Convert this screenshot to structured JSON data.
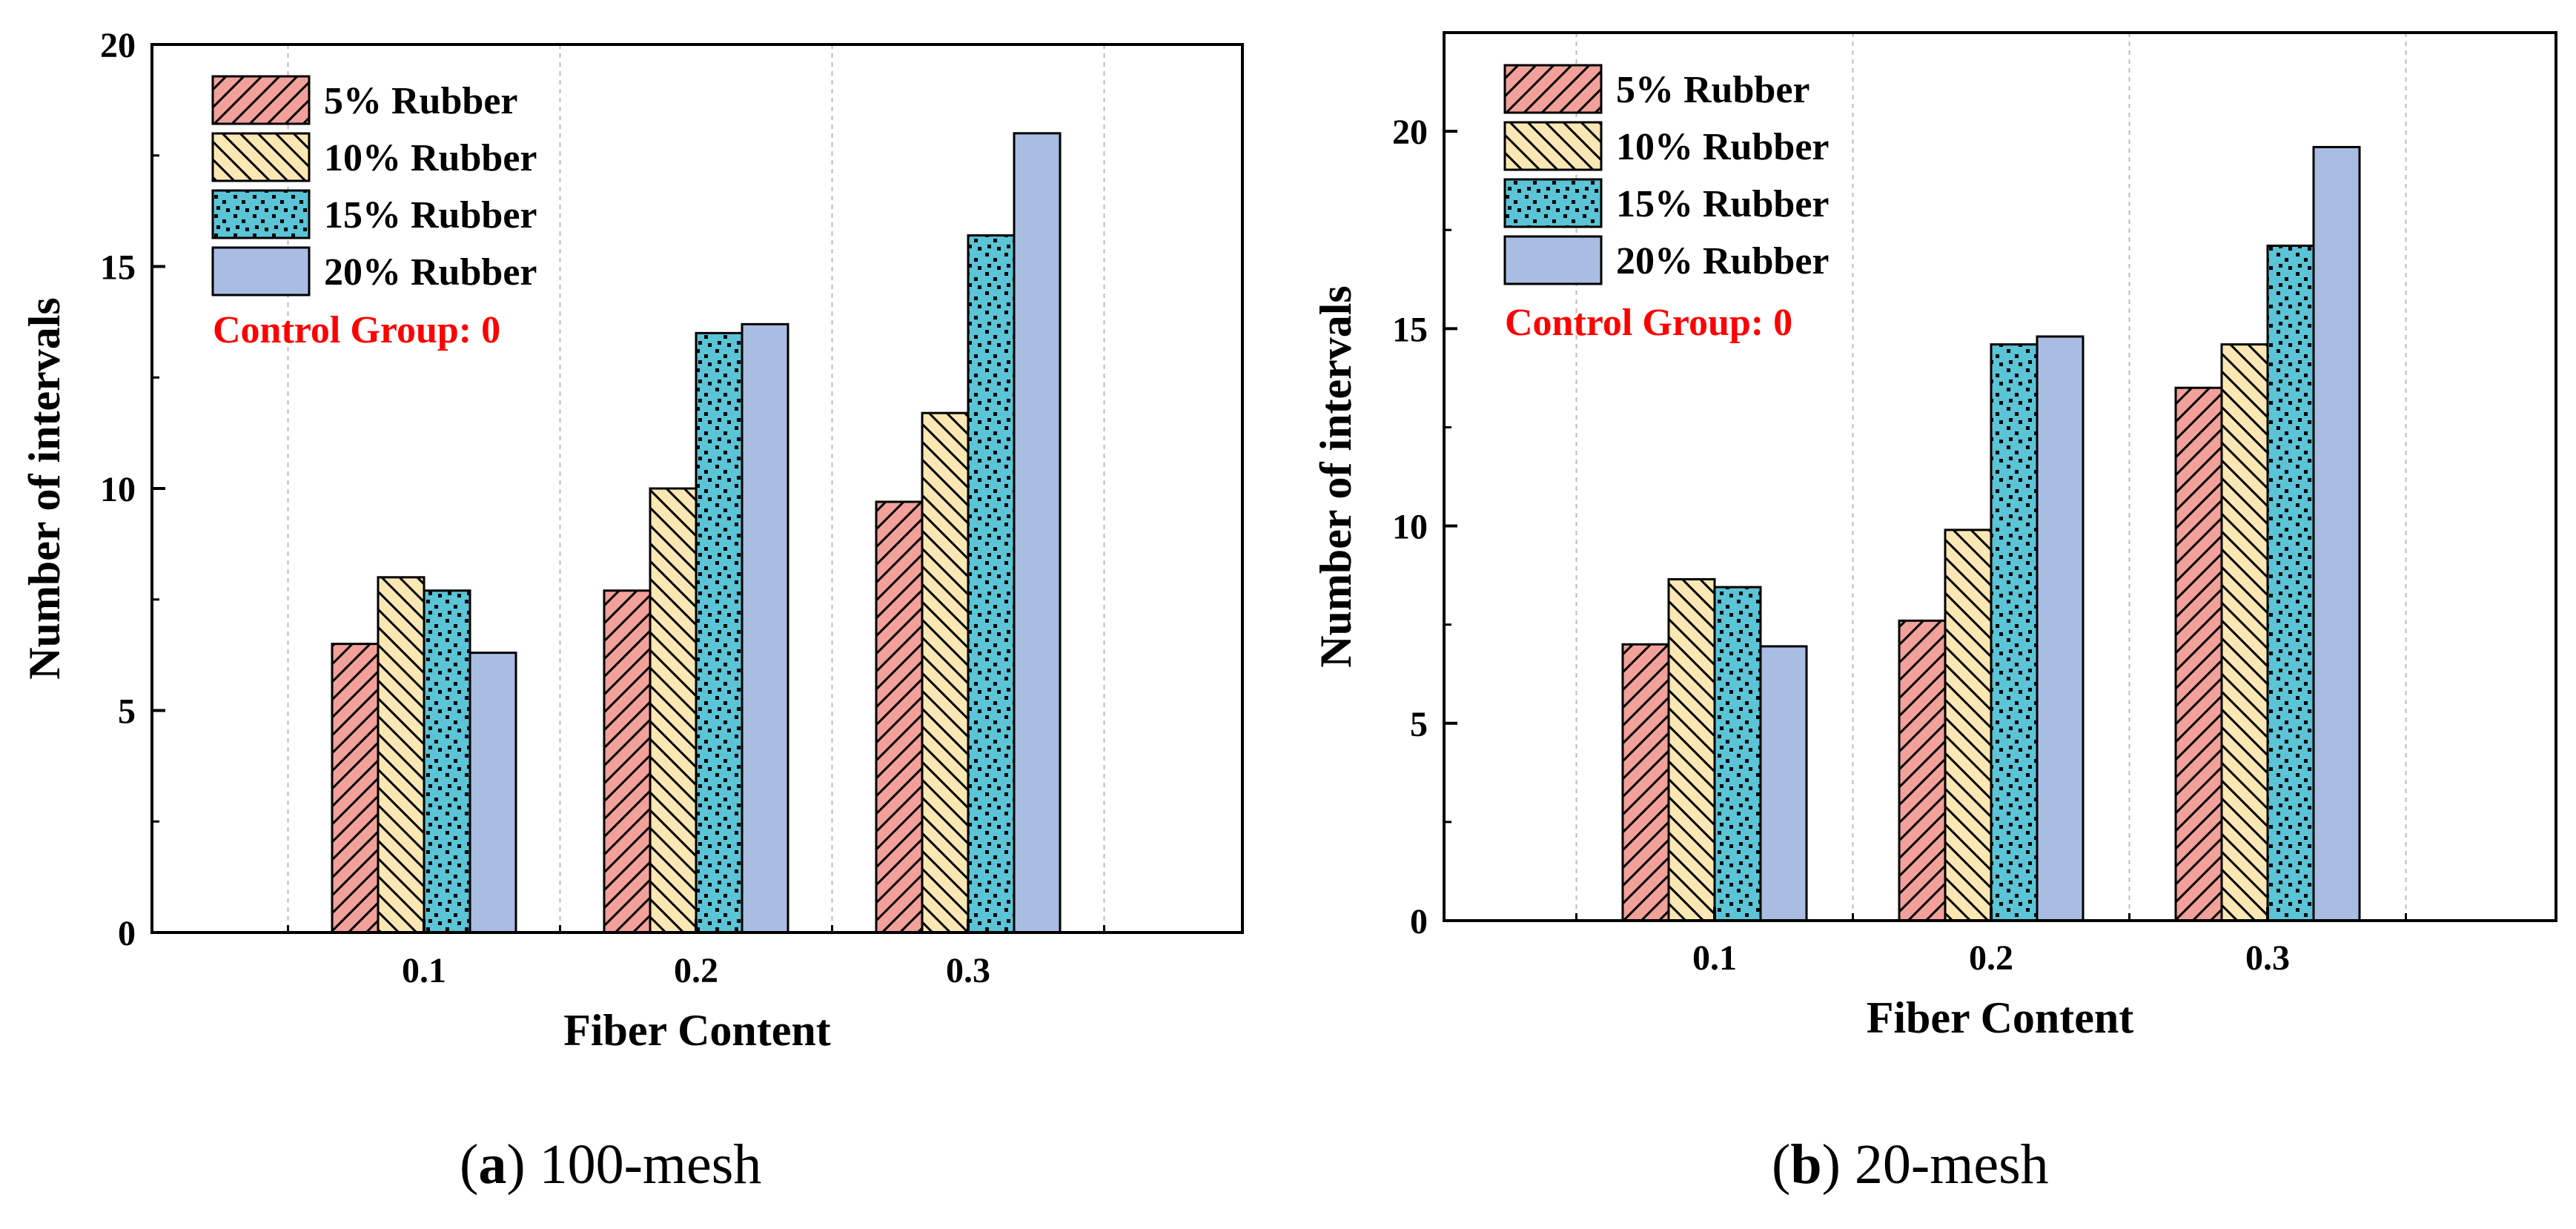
{
  "figure": {
    "legend_labels": [
      "5% Rubber",
      "10% Rubber",
      "15% Rubber",
      "20% Rubber"
    ],
    "note": "Control Group: 0",
    "colors": {
      "s5": "#f2a09a",
      "s10": "#fbe7b3",
      "s15": "#5bc4d6",
      "s20": "#a9bde3",
      "note": "#ff0000",
      "axis": "#000000",
      "grid": "#bbbbbb"
    }
  },
  "chart_data": [
    {
      "type": "bar",
      "panel_letter": "a",
      "panel_text": "100-mesh",
      "caption_open": "(",
      "caption_close": ") ",
      "xlabel": "Fiber Content",
      "ylabel": "Number of intervals",
      "categories": [
        "0.1",
        "0.2",
        "0.3"
      ],
      "ylim": [
        0,
        20
      ],
      "yticks": [
        0,
        5,
        10,
        15,
        20
      ],
      "grid_x": true,
      "legend_position": "top-left",
      "series": [
        {
          "name": "5% Rubber",
          "values": [
            6.5,
            7.7,
            9.7
          ]
        },
        {
          "name": "10% Rubber",
          "values": [
            8.0,
            10.0,
            11.7
          ]
        },
        {
          "name": "15% Rubber",
          "values": [
            7.7,
            13.5,
            15.7
          ]
        },
        {
          "name": "20% Rubber",
          "values": [
            6.3,
            13.7,
            18.0
          ]
        }
      ]
    },
    {
      "type": "bar",
      "panel_letter": "b",
      "panel_text": "20-mesh",
      "caption_open": "(",
      "caption_close": ") ",
      "xlabel": "Fiber Content",
      "ylabel": "Number of intervals",
      "categories": [
        "0.1",
        "0.2",
        "0.3"
      ],
      "ylim": [
        0,
        22.5
      ],
      "yticks": [
        0,
        5,
        10,
        15,
        20
      ],
      "grid_x": true,
      "legend_position": "top-left",
      "series": [
        {
          "name": "5% Rubber",
          "values": [
            7.0,
            7.6,
            13.5
          ]
        },
        {
          "name": "10% Rubber",
          "values": [
            8.65,
            9.9,
            14.6
          ]
        },
        {
          "name": "15% Rubber",
          "values": [
            8.45,
            14.6,
            17.1
          ]
        },
        {
          "name": "20% Rubber",
          "values": [
            6.95,
            14.8,
            19.6
          ]
        }
      ]
    }
  ]
}
